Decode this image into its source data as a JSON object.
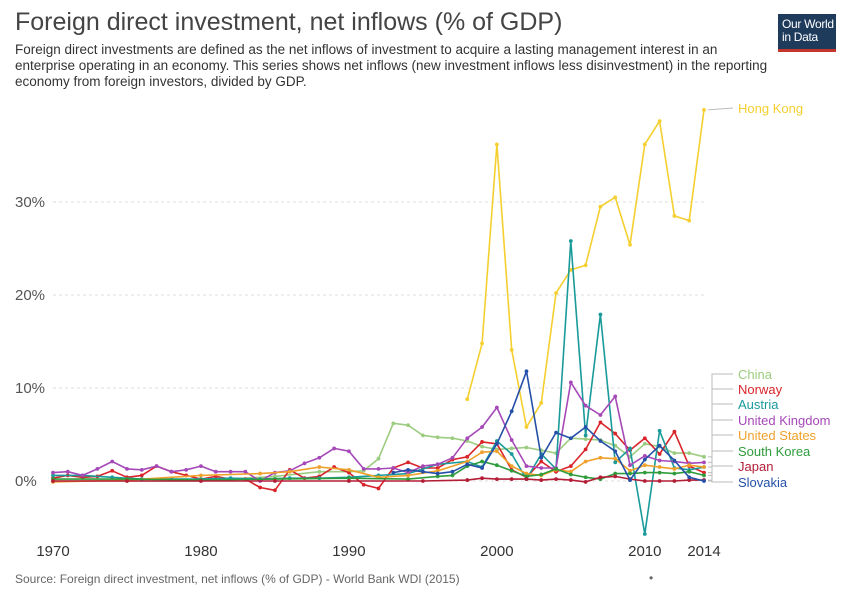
{
  "header": {
    "title": "Foreign direct investment, net inflows (% of GDP)",
    "subtitle": "Foreign direct investments are defined as the net inflows of investment to acquire a lasting management interest in an enterprise operating in an economy. This series shows net inflows (new investment inflows less disinvestment) in the reporting economy from foreign investors, divided by GDP.",
    "logo_line1": "Our World",
    "logo_line2": "in Data"
  },
  "footer": {
    "source": "Source: Foreign direct investment, net inflows (% of GDP) - World Bank WDI (2015)",
    "dot": "•"
  },
  "chart_data": {
    "type": "line",
    "title": "Foreign direct investment, net inflows (% of GDP)",
    "xlabel": "",
    "ylabel": "",
    "xlim": [
      1970,
      2014
    ],
    "ylim": [
      -7,
      40
    ],
    "x_ticks": [
      "1970",
      "1980",
      "1990",
      "2000",
      "2010",
      "2014"
    ],
    "y_ticks": [
      "0%",
      "10%",
      "20%",
      "30%"
    ],
    "grid": "horizontal dashed",
    "legend_placement": "right, at line ends",
    "series": [
      {
        "name": "Hong Kong",
        "color": "#f5cf2f",
        "x": [
          1998,
          1999,
          2000,
          2001,
          2002,
          2003,
          2004,
          2005,
          2006,
          2007,
          2008,
          2009,
          2010,
          2011,
          2012,
          2013,
          2014
        ],
        "y": [
          8.8,
          14.8,
          36.2,
          14.1,
          5.8,
          8.4,
          20.2,
          22.7,
          23.2,
          29.5,
          30.5,
          25.4,
          36.2,
          38.7,
          28.5,
          28.0,
          39.9
        ]
      },
      {
        "name": "China",
        "color": "#9ccc80",
        "x": [
          1970,
          1975,
          1980,
          1982,
          1985,
          1988,
          1990,
          1991,
          1992,
          1993,
          1994,
          1995,
          1996,
          1997,
          1998,
          1999,
          2000,
          2001,
          2002,
          2003,
          2004,
          2005,
          2006,
          2007,
          2008,
          2009,
          2010,
          2011,
          2012,
          2013,
          2014
        ],
        "y": [
          0,
          0,
          0,
          0.2,
          0.5,
          1.0,
          1.0,
          1.1,
          2.4,
          6.2,
          6.0,
          4.9,
          4.7,
          4.6,
          4.3,
          3.7,
          3.4,
          3.5,
          3.6,
          3.3,
          3.0,
          4.6,
          4.5,
          4.4,
          3.8,
          2.6,
          4.0,
          3.7,
          3.0,
          3.0,
          2.6
        ]
      },
      {
        "name": "Norway",
        "color": "#d8242a",
        "x": [
          1970,
          1971,
          1972,
          1973,
          1974,
          1975,
          1976,
          1977,
          1978,
          1979,
          1980,
          1981,
          1982,
          1983,
          1984,
          1985,
          1986,
          1987,
          1988,
          1989,
          1990,
          1991,
          1992,
          1993,
          1994,
          1995,
          1996,
          1997,
          1998,
          1999,
          2000,
          2001,
          2002,
          2003,
          2004,
          2005,
          2006,
          2007,
          2008,
          2009,
          2010,
          2011,
          2012,
          2013,
          2014
        ],
        "y": [
          0.3,
          0.6,
          0.4,
          0.5,
          1.1,
          0.4,
          0.6,
          1.6,
          1.0,
          0.6,
          0.2,
          0.5,
          0.2,
          0.2,
          -0.7,
          -1.0,
          1.2,
          0.3,
          0.5,
          1.5,
          0.9,
          -0.4,
          -0.8,
          1.4,
          2.0,
          1.4,
          1.4,
          2.3,
          2.6,
          4.2,
          4.0,
          1.2,
          0.4,
          2.1,
          1.0,
          1.6,
          3.4,
          6.3,
          5.1,
          3.3,
          4.6,
          2.9,
          5.3,
          1.6,
          0.9
        ]
      },
      {
        "name": "Austria",
        "color": "#1a9a9a",
        "x": [
          1970,
          1972,
          1974,
          1976,
          1978,
          1980,
          1982,
          1984,
          1986,
          1988,
          1990,
          1992,
          1994,
          1996,
          1998,
          1999,
          2000,
          2001,
          2002,
          2003,
          2004,
          2005,
          2006,
          2007,
          2008,
          2009,
          2010,
          2011,
          2012,
          2013,
          2014
        ],
        "y": [
          0.6,
          0.6,
          0.4,
          0.2,
          0.2,
          0.2,
          0.3,
          0.2,
          0.3,
          0.3,
          0.4,
          0.6,
          0.8,
          1.8,
          2.1,
          1.5,
          4.3,
          2.9,
          0.2,
          2.9,
          1.3,
          25.8,
          4.9,
          17.9,
          2.0,
          3.5,
          -5.7,
          5.4,
          1.4,
          1.2,
          1.5
        ]
      },
      {
        "name": "United Kingdom",
        "color": "#a649b8",
        "x": [
          1970,
          1971,
          1972,
          1973,
          1974,
          1975,
          1976,
          1977,
          1978,
          1979,
          1980,
          1981,
          1982,
          1983,
          1984,
          1985,
          1986,
          1987,
          1988,
          1989,
          1990,
          1991,
          1992,
          1993,
          1994,
          1995,
          1996,
          1997,
          1998,
          1999,
          2000,
          2001,
          2002,
          2003,
          2004,
          2005,
          2006,
          2007,
          2008,
          2009,
          2010,
          2011,
          2012,
          2013,
          2014
        ],
        "y": [
          0.9,
          1.0,
          0.6,
          1.3,
          2.1,
          1.3,
          1.2,
          1.6,
          1.0,
          1.2,
          1.6,
          1.0,
          1.0,
          1.0,
          0.0,
          0.9,
          1.1,
          1.9,
          2.5,
          3.5,
          3.2,
          1.3,
          1.3,
          1.4,
          0.9,
          1.6,
          1.8,
          2.5,
          4.6,
          5.8,
          7.9,
          4.4,
          1.6,
          1.4,
          1.4,
          10.6,
          8.1,
          7.1,
          9.1,
          1.7,
          2.7,
          2.2,
          2.1,
          1.9,
          2.0
        ]
      },
      {
        "name": "United States",
        "color": "#f0a12b",
        "x": [
          1970,
          1975,
          1980,
          1984,
          1986,
          1988,
          1990,
          1992,
          1994,
          1996,
          1998,
          1999,
          2000,
          2001,
          2002,
          2003,
          2004,
          2005,
          2006,
          2007,
          2008,
          2009,
          2010,
          2011,
          2012,
          2013,
          2014
        ],
        "y": [
          -0.1,
          0.1,
          0.6,
          0.8,
          1.0,
          1.5,
          1.2,
          0.4,
          0.6,
          1.1,
          2.1,
          3.1,
          3.2,
          1.6,
          0.8,
          0.6,
          1.2,
          1.0,
          2.1,
          2.5,
          2.4,
          1.1,
          1.7,
          1.5,
          1.3,
          1.7,
          1.5
        ]
      },
      {
        "name": "South Korea",
        "color": "#2f9c3c",
        "x": [
          1970,
          1975,
          1980,
          1985,
          1990,
          1994,
          1996,
          1997,
          1998,
          1999,
          2000,
          2001,
          2002,
          2003,
          2004,
          2005,
          2006,
          2007,
          2008,
          2009,
          2010,
          2011,
          2012,
          2013,
          2014
        ],
        "y": [
          0.2,
          0.2,
          0.1,
          0.2,
          0.3,
          0.2,
          0.5,
          0.6,
          1.6,
          2.1,
          1.7,
          1.1,
          0.5,
          0.7,
          1.3,
          0.7,
          0.4,
          0.2,
          0.8,
          0.8,
          0.9,
          0.9,
          0.8,
          1.0,
          0.6
        ]
      },
      {
        "name": "Japan",
        "color": "#b31d36",
        "x": [
          1970,
          1975,
          1980,
          1985,
          1990,
          1995,
          1998,
          1999,
          2000,
          2001,
          2002,
          2003,
          2004,
          2005,
          2006,
          2007,
          2008,
          2009,
          2010,
          2011,
          2012,
          2013,
          2014
        ],
        "y": [
          0.0,
          0.0,
          0.0,
          0.0,
          0.0,
          0.0,
          0.1,
          0.3,
          0.2,
          0.2,
          0.2,
          0.1,
          0.2,
          0.1,
          -0.1,
          0.4,
          0.5,
          0.2,
          0.0,
          0.0,
          0.0,
          0.1,
          0.1
        ]
      },
      {
        "name": "Slovakia",
        "color": "#2550a8",
        "x": [
          1993,
          1994,
          1995,
          1996,
          1997,
          1998,
          1999,
          2000,
          2001,
          2002,
          2003,
          2004,
          2005,
          2006,
          2007,
          2008,
          2009,
          2010,
          2011,
          2012,
          2013,
          2014
        ],
        "y": [
          0.9,
          1.2,
          1.0,
          0.8,
          1.0,
          1.8,
          1.4,
          4.0,
          7.5,
          11.8,
          2.5,
          5.2,
          4.6,
          5.8,
          4.3,
          3.2,
          0.1,
          2.3,
          3.8,
          2.2,
          0.4,
          0.0
        ]
      }
    ]
  }
}
